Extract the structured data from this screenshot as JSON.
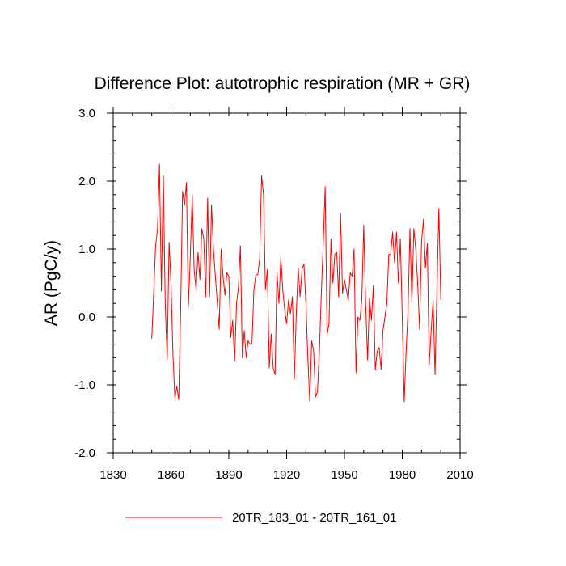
{
  "chart_data": {
    "type": "line",
    "title": "Difference Plot: autotrophic respiration (MR + GR)",
    "xlabel": "",
    "ylabel": "AR  (PgC/y)",
    "xlim": [
      1830,
      2010
    ],
    "ylim": [
      -2.0,
      3.0
    ],
    "x_major_ticks": [
      1830,
      1860,
      1890,
      1920,
      1950,
      1980,
      2010
    ],
    "x_tick_labels": [
      "1830",
      "1860",
      "1890",
      "1920",
      "1950",
      "1980",
      "2010"
    ],
    "y_major_ticks": [
      -2.0,
      -1.0,
      0.0,
      1.0,
      2.0,
      3.0
    ],
    "y_tick_labels": [
      "-2.0",
      "-1.0",
      "0.0",
      "1.0",
      "2.0",
      "3.0"
    ],
    "grid": false,
    "legend_position": "bottom-center",
    "series": [
      {
        "name": "20TR_183_01 - 20TR_161_01",
        "color": "#ff0000",
        "x_start": 1850,
        "x_step": 1,
        "values": [
          -0.32,
          0.35,
          1.05,
          1.3,
          2.25,
          0.38,
          2.08,
          0.2,
          -0.62,
          1.1,
          0.5,
          -0.55,
          -1.2,
          -1.02,
          -1.22,
          0.1,
          1.85,
          1.65,
          1.98,
          0.15,
          0.88,
          1.8,
          0.7,
          0.4,
          0.95,
          0.55,
          1.3,
          1.15,
          0.3,
          1.75,
          0.3,
          1.65,
          1.0,
          0.6,
          0.22,
          -0.18,
          1.0,
          0.6,
          0.32,
          0.65,
          0.6,
          -0.3,
          -0.05,
          -0.65,
          0.2,
          0.45,
          1.05,
          -0.6,
          -0.2,
          -0.6,
          -0.35,
          -0.4,
          -0.4,
          0.4,
          0.62,
          0.62,
          0.85,
          2.08,
          1.8,
          0.4,
          0.7,
          -0.75,
          -0.25,
          -0.75,
          -0.85,
          0.65,
          0.2,
          0.88,
          0.4,
          0.1,
          -0.1,
          0.25,
          0.05,
          0.3,
          -0.92,
          0.05,
          0.72,
          0.3,
          0.7,
          0.78,
          0.2,
          -0.6,
          -1.24,
          -0.35,
          -0.5,
          -1.18,
          -1.1,
          -0.5,
          0.35,
          1.08,
          1.92,
          -0.25,
          -0.1,
          1.15,
          0.5,
          0.92,
          0.95,
          0.3,
          1.52,
          0.35,
          0.55,
          0.4,
          0.25,
          0.65,
          0.6,
          1.0,
          -0.82,
          0.0,
          -0.05,
          0.25,
          1.35,
          0.2,
          -0.63,
          0.28,
          -0.05,
          0.47,
          -0.78,
          -0.5,
          -0.45,
          -0.77,
          -0.2,
          0.0,
          0.2,
          0.92,
          0.92,
          1.25,
          0.8,
          1.25,
          0.5,
          1.15,
          0.0,
          -1.25,
          -0.5,
          0.1,
          1.3,
          0.2,
          1.3,
          1.0,
          0.5,
          -0.18,
          1.1,
          1.44,
          0.72,
          1.08,
          -0.7,
          -0.2,
          0.25,
          -0.85,
          0.4,
          1.6,
          0.25
        ]
      }
    ]
  }
}
